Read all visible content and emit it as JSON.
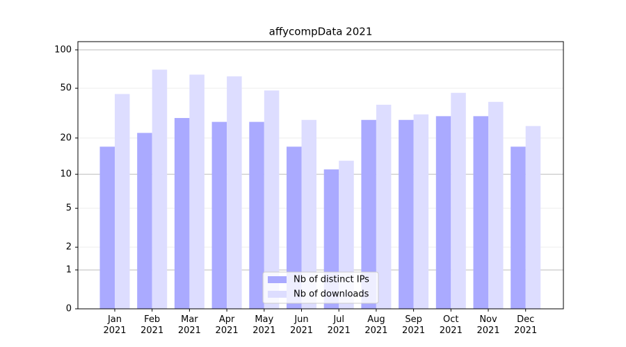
{
  "chart_data": {
    "type": "bar",
    "title": "affycompData 2021",
    "categories": [
      "Jan\n2021",
      "Feb\n2021",
      "Mar\n2021",
      "Apr\n2021",
      "May\n2021",
      "Jun\n2021",
      "Jul\n2021",
      "Aug\n2021",
      "Sep\n2021",
      "Oct\n2021",
      "Nov\n2021",
      "Dec\n2021"
    ],
    "series": [
      {
        "name": "Nb of distinct IPs",
        "color": "#aaaaff",
        "values": [
          17,
          22,
          29,
          27,
          27,
          17,
          11,
          28,
          28,
          30,
          30,
          17
        ]
      },
      {
        "name": "Nb of downloads",
        "color": "#ddddff",
        "values": [
          45,
          70,
          64,
          62,
          48,
          28,
          13,
          37,
          31,
          46,
          39,
          25
        ]
      }
    ],
    "yscale": "log1p",
    "ylim": [
      0,
      116
    ],
    "yticks": [
      0,
      1,
      2,
      5,
      10,
      20,
      50,
      100
    ],
    "grid": true,
    "legend": "lower center"
  }
}
